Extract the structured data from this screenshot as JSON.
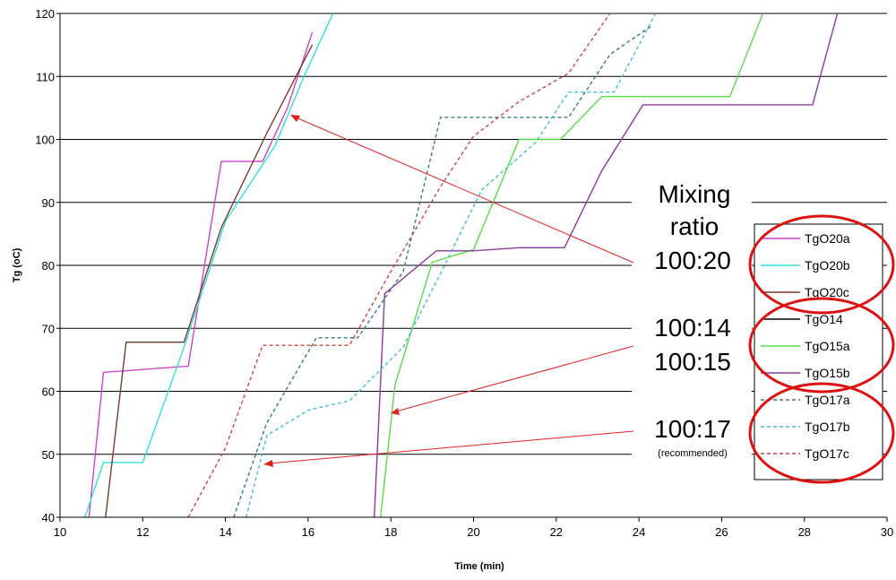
{
  "chart_data": {
    "type": "line",
    "xlabel": "Time (min)",
    "ylabel": "Tg (oC)",
    "xlim": [
      10,
      30
    ],
    "ylim": [
      40,
      120
    ],
    "x_ticks": [
      10,
      12,
      14,
      16,
      18,
      20,
      22,
      24,
      26,
      28,
      30
    ],
    "y_ticks": [
      40,
      50,
      60,
      70,
      80,
      90,
      100,
      110,
      120
    ],
    "grid": "horizontal",
    "legend_position": "right",
    "series": [
      {
        "name": "TgO20a",
        "color": "#cc44cc",
        "dash": "solid",
        "points": [
          [
            10.7,
            40
          ],
          [
            11.05,
            63
          ],
          [
            13.1,
            64
          ],
          [
            13.9,
            96.5
          ],
          [
            14.9,
            96.5
          ],
          [
            15.5,
            105
          ],
          [
            16.1,
            117
          ]
        ]
      },
      {
        "name": "TgO20b",
        "color": "#33dddd",
        "dash": "solid",
        "points": [
          [
            10.6,
            40
          ],
          [
            11.05,
            48.7
          ],
          [
            12.0,
            48.7
          ],
          [
            13.0,
            67
          ],
          [
            14.0,
            87
          ],
          [
            15.2,
            99
          ],
          [
            15.9,
            110
          ],
          [
            16.6,
            120
          ]
        ]
      },
      {
        "name": "TgO20c",
        "color": "#7a3a2e",
        "dash": "solid",
        "points": [
          [
            11.1,
            40
          ],
          [
            11.6,
            67.8
          ],
          [
            13.0,
            67.8
          ],
          [
            13.9,
            86
          ],
          [
            15.0,
            101
          ],
          [
            16.1,
            115
          ]
        ]
      },
      {
        "name": "TgO14",
        "color": "#000000",
        "dash": "solid",
        "points": []
      },
      {
        "name": "TgO15a",
        "color": "#55dd44",
        "dash": "solid",
        "points": [
          [
            17.75,
            40
          ],
          [
            18.1,
            61
          ],
          [
            19.0,
            80.5
          ],
          [
            20.0,
            82.5
          ],
          [
            21.1,
            100
          ],
          [
            22.1,
            100
          ],
          [
            23.1,
            106.8
          ],
          [
            26.2,
            106.8
          ],
          [
            27.0,
            120
          ]
        ]
      },
      {
        "name": "TgO15b",
        "color": "#8a3a9a",
        "dash": "solid",
        "points": [
          [
            17.6,
            40
          ],
          [
            17.85,
            75.5
          ],
          [
            19.1,
            82.3
          ],
          [
            20.0,
            82.3
          ],
          [
            21.1,
            82.8
          ],
          [
            22.2,
            82.8
          ],
          [
            23.1,
            95
          ],
          [
            24.1,
            105.5
          ],
          [
            28.2,
            105.5
          ],
          [
            28.8,
            120
          ]
        ]
      },
      {
        "name": "TgO17a",
        "color": "#3d7a7a",
        "dash": "dashed",
        "points": [
          [
            14.2,
            40
          ],
          [
            15.0,
            55
          ],
          [
            16.2,
            68.5
          ],
          [
            17.2,
            68.5
          ],
          [
            18.3,
            79
          ],
          [
            19.2,
            103.5
          ],
          [
            22.3,
            103.5
          ],
          [
            23.3,
            113.5
          ],
          [
            24.3,
            118
          ]
        ]
      },
      {
        "name": "TgO17b",
        "color": "#44bbdd",
        "dash": "dashed",
        "points": [
          [
            14.5,
            40
          ],
          [
            15.0,
            53
          ],
          [
            16.0,
            57
          ],
          [
            17.0,
            58.5
          ],
          [
            18.3,
            67
          ],
          [
            19.3,
            80
          ],
          [
            20.2,
            92
          ],
          [
            21.5,
            99.5
          ],
          [
            22.3,
            107.5
          ],
          [
            23.4,
            107.5
          ],
          [
            24.4,
            120
          ]
        ]
      },
      {
        "name": "TgO17c",
        "color": "#cc4444",
        "dash": "dashed",
        "points": [
          [
            13.1,
            40
          ],
          [
            14.0,
            51
          ],
          [
            14.9,
            67.3
          ],
          [
            17.0,
            67.3
          ],
          [
            18.0,
            79
          ],
          [
            19.2,
            92.5
          ],
          [
            20.0,
            100.5
          ],
          [
            21.1,
            106
          ],
          [
            22.3,
            110.5
          ],
          [
            23.3,
            120
          ]
        ]
      }
    ]
  },
  "annotations": {
    "mixing_line1": "Mixing",
    "mixing_line2": "ratio",
    "ratio_20": "100:20",
    "ratio_14": "100:14",
    "ratio_15": "100:15",
    "ratio_17": "100:17",
    "recommended": "(recommended)",
    "arrow_color": "#dd2222",
    "ellipse_color": "#dd1111"
  }
}
